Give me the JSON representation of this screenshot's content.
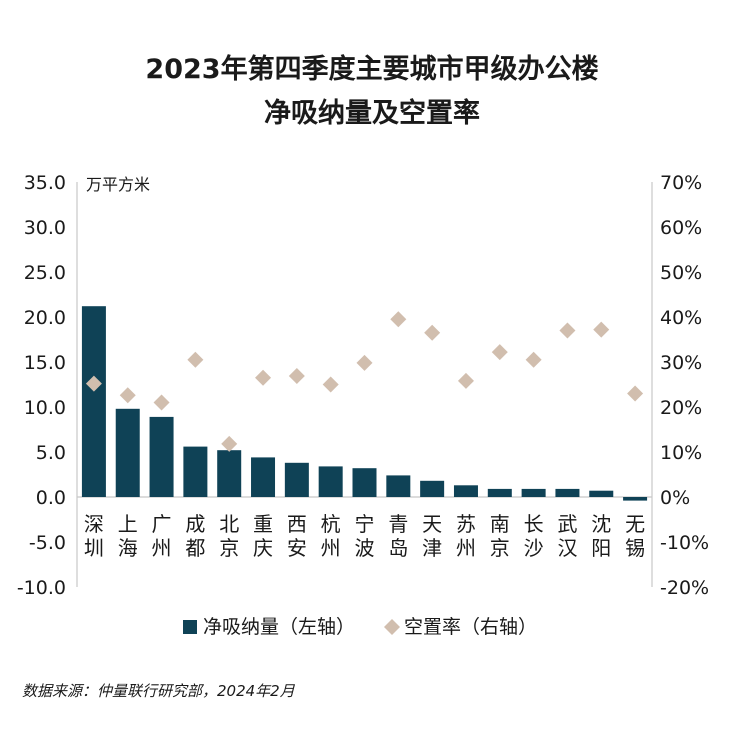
{
  "title_line1": "2023年第四季度主要城市甲级办公楼",
  "title_line2": "净吸纳量及空置率",
  "source": "数据来源：仲量联行研究部，2024年2月",
  "colors": {
    "bar": "#0f4256",
    "marker": "#d1beae",
    "axis": "#c8c8c8"
  },
  "chart_data": {
    "type": "bar",
    "categories": [
      "深圳",
      "上海",
      "广州",
      "成都",
      "北京",
      "重庆",
      "西安",
      "杭州",
      "宁波",
      "青岛",
      "天津",
      "苏州",
      "南京",
      "长沙",
      "武汉",
      "沈阳",
      "无锡"
    ],
    "category_labels": [
      [
        "深",
        "圳"
      ],
      [
        "上",
        "海"
      ],
      [
        "广",
        "州"
      ],
      [
        "成",
        "都"
      ],
      [
        "北",
        "京"
      ],
      [
        "重",
        "庆"
      ],
      [
        "西",
        "安"
      ],
      [
        "杭",
        "州"
      ],
      [
        "宁",
        "波"
      ],
      [
        "青",
        "岛"
      ],
      [
        "天",
        "津"
      ],
      [
        "苏",
        "州"
      ],
      [
        "南",
        "京"
      ],
      [
        "长",
        "沙"
      ],
      [
        "武",
        "汉"
      ],
      [
        "沈",
        "阳"
      ],
      [
        "无",
        "锡"
      ]
    ],
    "y_left_unit": "万平方米",
    "y_left_ticks": [
      "35.0",
      "30.0",
      "25.0",
      "20.0",
      "15.0",
      "10.0",
      "5.0",
      "0.0",
      "-5.0",
      "-10.0"
    ],
    "y_left_lim": [
      -10,
      35
    ],
    "y_right_ticks": [
      "70%",
      "60%",
      "50%",
      "40%",
      "30%",
      "20%",
      "10%",
      "0%",
      "-10%",
      "-20%"
    ],
    "y_right_lim": [
      -20,
      70
    ],
    "legend_position": "bottom",
    "series": [
      {
        "name": "净吸纳量（左轴）",
        "type": "bar",
        "axis": "left",
        "values": [
          21.2,
          9.8,
          8.9,
          5.6,
          5.2,
          4.4,
          3.8,
          3.4,
          3.2,
          2.4,
          1.8,
          1.3,
          0.9,
          0.9,
          0.9,
          0.7,
          -0.4
        ]
      },
      {
        "name": "空置率（右轴）",
        "type": "scatter",
        "axis": "right",
        "values": [
          25.2,
          22.6,
          21.0,
          30.5,
          11.8,
          26.5,
          26.9,
          25.0,
          29.8,
          39.5,
          36.5,
          25.8,
          32.2,
          30.5,
          37.0,
          37.2,
          23.0
        ]
      }
    ]
  }
}
